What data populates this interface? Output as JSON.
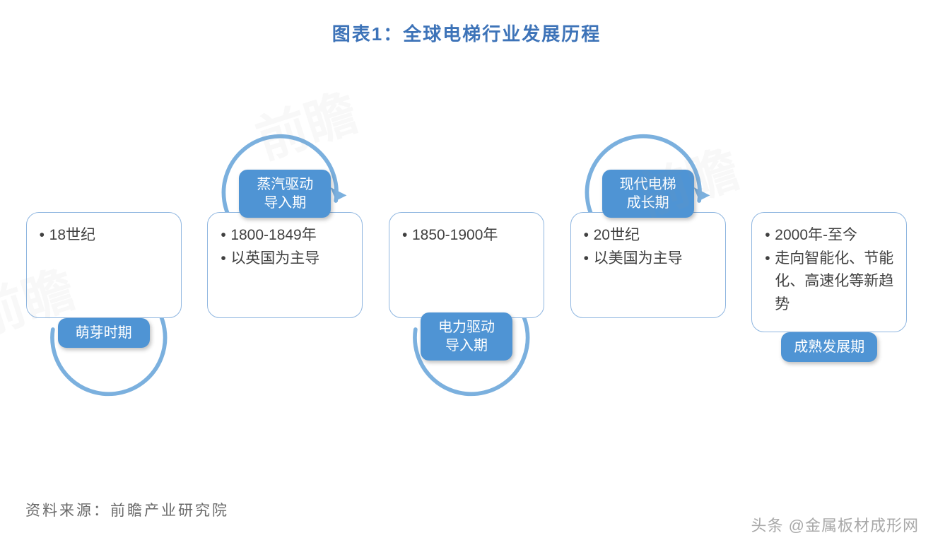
{
  "title": "图表1：全球电梯行业发展历程",
  "source_label": "资料来源：前瞻产业研究院",
  "attribution": "头条 @金属板材成形网",
  "colors": {
    "title_text": "#3d73b8",
    "card_border": "#8fb6e0",
    "card_text": "#404040",
    "badge_bg": "#4f94d4",
    "arc_stroke": "#7bb0de",
    "source_text": "#6a6a6a",
    "attrib_text": "#9a9a9a",
    "watermark": "#999999"
  },
  "layout": {
    "type": "flowchart",
    "direction": "horizontal",
    "arc_stroke_width": 3,
    "card_border_radius": 18,
    "badge_border_radius": 12
  },
  "stages": [
    {
      "badge": "萌芽时期",
      "badge_pos": "bottom",
      "bullets": [
        "18世纪"
      ],
      "arc": "below"
    },
    {
      "badge": "蒸汽驱动\n导入期",
      "badge_pos": "top",
      "bullets": [
        "1800-1849年",
        "以英国为主导"
      ],
      "arc": "above"
    },
    {
      "badge": "电力驱动\n导入期",
      "badge_pos": "bottom2",
      "bullets": [
        "1850-1900年"
      ],
      "arc": "below"
    },
    {
      "badge": "现代电梯\n成长期",
      "badge_pos": "top",
      "bullets": [
        "20世纪",
        "以美国为主导"
      ],
      "arc": "above"
    },
    {
      "badge": "成熟发展期",
      "badge_pos": "bottom",
      "bullets": [
        "2000年-至今",
        "走向智能化、节能化、高速化等新趋势"
      ],
      "arc": null
    }
  ]
}
